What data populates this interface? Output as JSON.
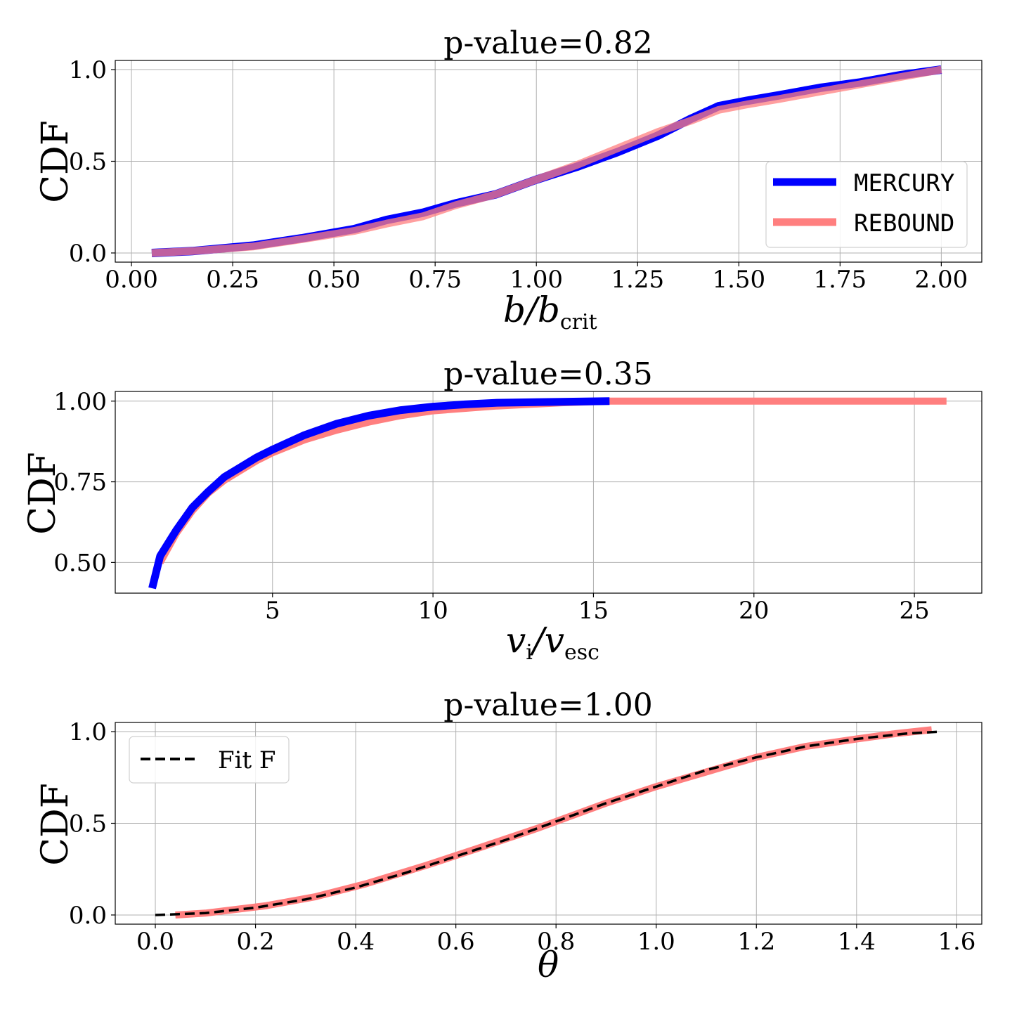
{
  "chart_data": [
    {
      "type": "line",
      "title": "p-value=0.82",
      "xlabel": "b/b",
      "xlabel_sub": "crit",
      "ylabel": "CDF",
      "xlim": [
        -0.04,
        2.1
      ],
      "ylim": [
        -0.05,
        1.05
      ],
      "xticks": [
        0.0,
        0.25,
        0.5,
        0.75,
        1.0,
        1.25,
        1.5,
        1.75,
        2.0
      ],
      "xtick_labels": [
        "0.00",
        "0.25",
        "0.50",
        "0.75",
        "1.00",
        "1.25",
        "1.50",
        "1.75",
        "2.00"
      ],
      "yticks": [
        0.0,
        0.5,
        1.0
      ],
      "ytick_labels": [
        "0.0",
        "0.5",
        "1.0"
      ],
      "grid": true,
      "legend": "center-right",
      "series": [
        {
          "name": "MERCURY",
          "color": "#0000ff",
          "x": [
            0.05,
            0.15,
            0.3,
            0.42,
            0.55,
            0.63,
            0.72,
            0.8,
            0.9,
            1.0,
            1.1,
            1.2,
            1.3,
            1.38,
            1.45,
            1.52,
            1.6,
            1.7,
            1.8,
            1.9,
            2.0
          ],
          "y": [
            0.0,
            0.01,
            0.04,
            0.08,
            0.13,
            0.18,
            0.22,
            0.27,
            0.32,
            0.4,
            0.47,
            0.55,
            0.64,
            0.73,
            0.8,
            0.83,
            0.86,
            0.9,
            0.93,
            0.97,
            1.0
          ]
        },
        {
          "name": "REBOUND",
          "color": "#ff7f7f",
          "x": [
            0.05,
            0.15,
            0.3,
            0.42,
            0.55,
            0.63,
            0.72,
            0.8,
            0.9,
            1.0,
            1.1,
            1.2,
            1.3,
            1.38,
            1.45,
            1.52,
            1.6,
            1.7,
            1.8,
            1.9,
            2.0
          ],
          "y": [
            0.0,
            0.01,
            0.035,
            0.075,
            0.12,
            0.16,
            0.2,
            0.26,
            0.32,
            0.4,
            0.48,
            0.57,
            0.66,
            0.72,
            0.78,
            0.81,
            0.84,
            0.88,
            0.92,
            0.96,
            1.0
          ]
        }
      ]
    },
    {
      "type": "line",
      "title": "p-value=0.35",
      "xlabel": "v",
      "xlabel_sub": "i",
      "xlabel_mid": "/v",
      "xlabel_sub2": "esc",
      "ylabel": "CDF",
      "xlim": [
        0.1,
        27.1
      ],
      "ylim": [
        0.405,
        1.03
      ],
      "xticks": [
        5,
        10,
        15,
        20,
        25
      ],
      "xtick_labels": [
        "5",
        "10",
        "15",
        "20",
        "25"
      ],
      "yticks": [
        0.5,
        0.75,
        1.0
      ],
      "ytick_labels": [
        "0.50",
        "0.75",
        "1.00"
      ],
      "grid": true,
      "legend": "none",
      "series": [
        {
          "name": "REBOUND",
          "color": "#ff7f7f",
          "x": [
            1.5,
            2.0,
            2.5,
            3.0,
            3.5,
            4.0,
            4.5,
            5.0,
            6.0,
            7.0,
            8.0,
            9.0,
            10.0,
            12.0,
            14.0,
            15.5,
            20.0,
            26.0
          ],
          "y": [
            0.5,
            0.59,
            0.66,
            0.715,
            0.755,
            0.785,
            0.815,
            0.84,
            0.88,
            0.91,
            0.935,
            0.955,
            0.97,
            0.985,
            0.995,
            1.0,
            1.0,
            1.0
          ]
        },
        {
          "name": "MERCURY",
          "color": "#0000ff",
          "x": [
            1.25,
            1.5,
            2.0,
            2.5,
            3.0,
            3.5,
            4.0,
            4.5,
            5.0,
            6.0,
            7.0,
            8.0,
            9.0,
            10.0,
            11.0,
            12.0,
            14.0,
            15.5
          ],
          "y": [
            0.42,
            0.52,
            0.6,
            0.67,
            0.72,
            0.765,
            0.795,
            0.825,
            0.85,
            0.895,
            0.93,
            0.955,
            0.972,
            0.983,
            0.99,
            0.995,
            0.998,
            1.0
          ]
        }
      ]
    },
    {
      "type": "line",
      "title": "p-value=1.00",
      "xlabel": "θ",
      "ylabel": "CDF",
      "xlim": [
        -0.08,
        1.65
      ],
      "ylim": [
        -0.05,
        1.05
      ],
      "xticks": [
        0.0,
        0.2,
        0.4,
        0.6,
        0.8,
        1.0,
        1.2,
        1.4,
        1.6
      ],
      "xtick_labels": [
        "0.0",
        "0.2",
        "0.4",
        "0.6",
        "0.8",
        "1.0",
        "1.2",
        "1.4",
        "1.6"
      ],
      "yticks": [
        0.0,
        0.5,
        1.0
      ],
      "ytick_labels": [
        "0.0",
        "0.5",
        "1.0"
      ],
      "grid": true,
      "legend": "top-left",
      "series": [
        {
          "name": "",
          "color": "#ff7f7f",
          "x": [
            0.04,
            0.1,
            0.22,
            0.32,
            0.42,
            0.54,
            0.64,
            0.76,
            0.9,
            1.0,
            1.1,
            1.2,
            1.3,
            1.4,
            1.48,
            1.55
          ],
          "y": [
            0.0,
            0.01,
            0.05,
            0.1,
            0.17,
            0.27,
            0.36,
            0.47,
            0.61,
            0.7,
            0.78,
            0.86,
            0.92,
            0.96,
            0.99,
            1.01
          ]
        },
        {
          "name": "Fit F",
          "color": "#000000",
          "dashed": true,
          "x": [
            0.0,
            0.1,
            0.2,
            0.3,
            0.4,
            0.5,
            0.6,
            0.7,
            0.8,
            0.9,
            1.0,
            1.1,
            1.2,
            1.3,
            1.4,
            1.5,
            1.57
          ],
          "y": [
            0.0,
            0.01,
            0.04,
            0.085,
            0.15,
            0.23,
            0.32,
            0.41,
            0.51,
            0.61,
            0.7,
            0.79,
            0.86,
            0.92,
            0.96,
            0.99,
            1.0
          ]
        }
      ]
    }
  ]
}
